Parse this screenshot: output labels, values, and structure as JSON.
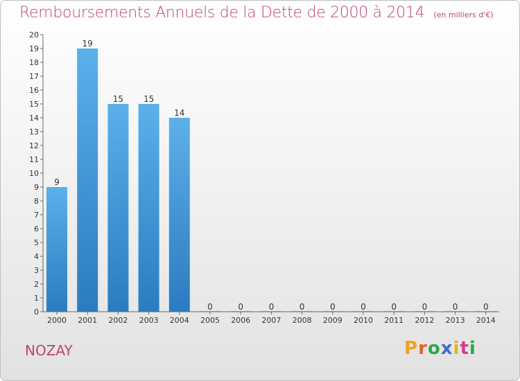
{
  "chart_data": {
    "type": "bar",
    "title": "Remboursements Annuels de la Dette de 2000 à 2014",
    "subtitle": "(en milliers d'€)",
    "categories": [
      "2000",
      "2001",
      "2002",
      "2003",
      "2004",
      "2005",
      "2006",
      "2007",
      "2008",
      "2009",
      "2010",
      "2011",
      "2012",
      "2013",
      "2014"
    ],
    "values": [
      9,
      19,
      15,
      15,
      14,
      0,
      0,
      0,
      0,
      0,
      0,
      0,
      0,
      0,
      0
    ],
    "data_labels": [
      "9",
      "19",
      "15",
      "15",
      "14",
      "0",
      "0",
      "0",
      "0",
      "0",
      "0",
      "0",
      "0",
      "0",
      "0"
    ],
    "ylim": [
      0,
      20
    ],
    "yticks": [
      "0",
      "1",
      "2",
      "3",
      "4",
      "5",
      "6",
      "7",
      "8",
      "9",
      "10",
      "11",
      "12",
      "13",
      "14",
      "15",
      "16",
      "17",
      "18",
      "19",
      "20"
    ],
    "xlabel": "",
    "ylabel": "",
    "grid": false,
    "bar_color": "#4fa3e0"
  },
  "footer": {
    "commune": "NOZAY",
    "logo_letters": [
      "P",
      "r",
      "o",
      "x",
      "i",
      "t",
      "i"
    ],
    "logo_colors": [
      "#f0a020",
      "#e8602c",
      "#2aa84a",
      "#3a6fd0",
      "#e8b020",
      "#d43c8a",
      "#2aa84a"
    ]
  }
}
